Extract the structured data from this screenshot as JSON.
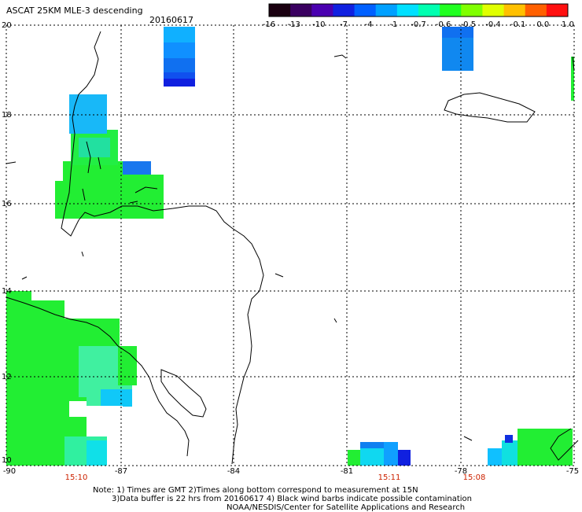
{
  "header": {
    "title": "ASCAT 25KM MLE-3 descending",
    "date": "20160617"
  },
  "colorbar": {
    "ticks": [
      "-16",
      "-13",
      "-10",
      "-7",
      "-4",
      "-1",
      "-0.7",
      "-0.6",
      "-0.5",
      "-0.4",
      "-0.1",
      "0.0",
      "1.0"
    ],
    "colors": [
      "#1a0010",
      "#3a0060",
      "#4a00b0",
      "#1020e0",
      "#0060ff",
      "#00a0ff",
      "#00e0ff",
      "#00ffb0",
      "#20ff20",
      "#80ff00",
      "#e0ff00",
      "#ffc000",
      "#ff6000",
      "#ff1010"
    ]
  },
  "axes": {
    "lat_labels": [
      "20",
      "18",
      "16",
      "14",
      "12",
      "10"
    ],
    "lon_labels": [
      "-90",
      "-87",
      "-84",
      "-81",
      "-78",
      "-75"
    ]
  },
  "pass_times": [
    {
      "label": "15:10",
      "lon": -88.8
    },
    {
      "label": "15:11",
      "lon": -79.9
    },
    {
      "label": "15:08",
      "lon": -77.6
    }
  ],
  "notes": {
    "line1": "Note: 1) Times are GMT 2)Times along bottom correspond to measurement at 15N",
    "line2": "3)Data buffer is 22 hrs from 20160617 4) Black wind barbs indicate possible contamination",
    "line3": "NOAA/NESDIS/Center for Satellite Applications and Research"
  },
  "legend_colors": {
    "green": "#20ee30",
    "cyan": "#00d8f0",
    "lightblue": "#10b0ff",
    "blue": "#1070f0",
    "darkblue": "#1020e0"
  }
}
